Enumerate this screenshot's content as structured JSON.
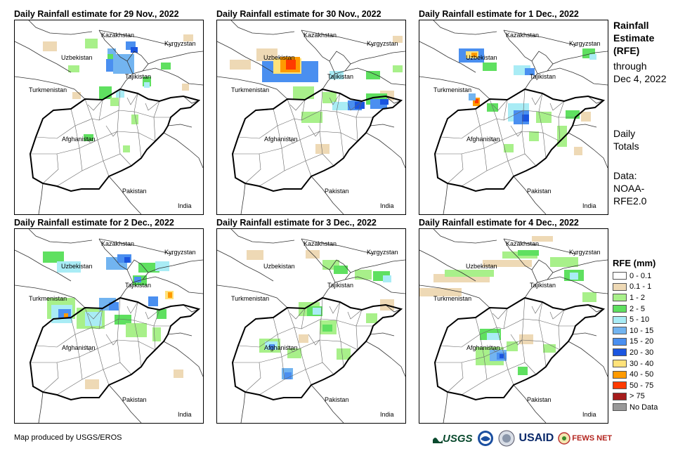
{
  "panels": [
    {
      "title": "Daily Rainfall estimate for 29 Nov., 2022"
    },
    {
      "title": "Daily Rainfall estimate for 30 Nov., 2022"
    },
    {
      "title": "Daily Rainfall estimate for 1 Dec., 2022"
    },
    {
      "title": "Daily Rainfall estimate for 2 Dec., 2022"
    },
    {
      "title": "Daily Rainfall estimate for 3 Dec., 2022"
    },
    {
      "title": "Daily Rainfall estimate for 4 Dec., 2022"
    }
  ],
  "country_labels": {
    "kazakhstan": "Kazakhstan",
    "kyrgyzstan": "Kyrgyzstan",
    "uzbekistan": "Uzbekistan",
    "tajikistan": "Tajikistan",
    "turkmenistan": "Turkmenistan",
    "afghanistan": "Afghanistan",
    "pakistan": "Pakistan",
    "india": "India"
  },
  "side": {
    "heading_lines": [
      "Rainfall",
      "Estimate",
      "(RFE)"
    ],
    "through_lines": [
      "through",
      "Dec 4, 2022"
    ],
    "totals_lines": [
      "Daily",
      "Totals"
    ],
    "data_lines": [
      "Data:",
      "NOAA-",
      "RFE2.0"
    ]
  },
  "legend": {
    "title": "RFE (mm)",
    "items": [
      {
        "label": "0 - 0.1",
        "color": "#ffffff"
      },
      {
        "label": "0.1 - 1",
        "color": "#eed9b5"
      },
      {
        "label": "1 - 2",
        "color": "#a8f08a"
      },
      {
        "label": "2 - 5",
        "color": "#5fe060"
      },
      {
        "label": "5 - 10",
        "color": "#a9ecf5"
      },
      {
        "label": "10 - 15",
        "color": "#72b4f0"
      },
      {
        "label": "15 - 20",
        "color": "#4a8ff0"
      },
      {
        "label": "20 - 30",
        "color": "#1a55e0"
      },
      {
        "label": "30 - 40",
        "color": "#ffe27a"
      },
      {
        "label": "40 - 50",
        "color": "#ff9a00"
      },
      {
        "label": "50 - 75",
        "color": "#ff3a00"
      },
      {
        "label": "> 75",
        "color": "#a51c1c"
      },
      {
        "label": "No Data",
        "color": "#999999"
      }
    ]
  },
  "credit": "Map produced by USGS/EROS",
  "logos": {
    "usgs": "USGS",
    "usaid": "USAID",
    "fewsnet": "FEWS NET"
  }
}
